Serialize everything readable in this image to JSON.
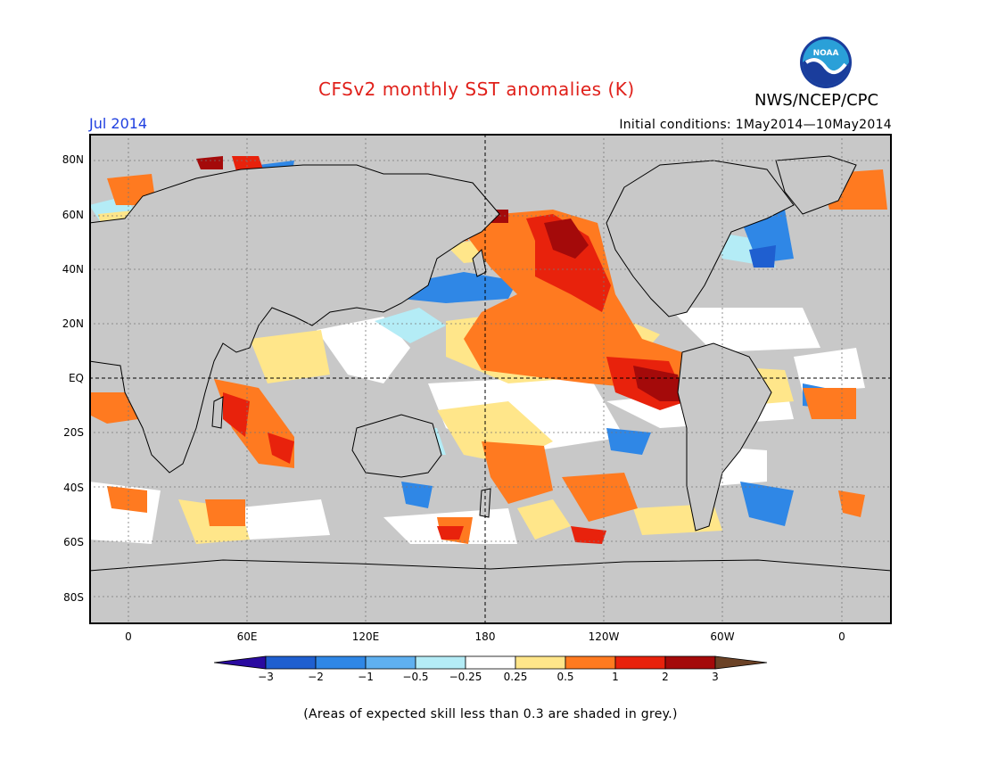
{
  "header": {
    "title": "CFSv2 monthly SST anomalies (K)",
    "organization": "NWS/NCEP/CPC",
    "logo_text": "NOAA",
    "month": "Jul 2014",
    "initial_conditions_label": "Initial conditions:",
    "initial_conditions_range": "1May2014—10May2014"
  },
  "map": {
    "lat_labels": [
      "80N",
      "60N",
      "40N",
      "20N",
      "EQ",
      "20S",
      "40S",
      "60S",
      "80S"
    ],
    "lon_labels": [
      "0",
      "60E",
      "120E",
      "180",
      "120W",
      "60W",
      "0"
    ],
    "land_color": "#c8c8c8"
  },
  "colorbar": {
    "tick_labels": [
      "−3",
      "−2",
      "−1",
      "−0.5",
      "−0.25",
      "0.25",
      "0.5",
      "1",
      "2",
      "3"
    ],
    "colors": [
      "#2a0aa0",
      "#1f5fd0",
      "#2f87e6",
      "#5fb0f0",
      "#b4ecf6",
      "#ffffff",
      "#ffe68a",
      "#ff7a20",
      "#e8220c",
      "#a40a0a",
      "#6b4226"
    ]
  },
  "footer": {
    "note": "(Areas of expected skill less than 0.3 are shaded in grey.)"
  }
}
